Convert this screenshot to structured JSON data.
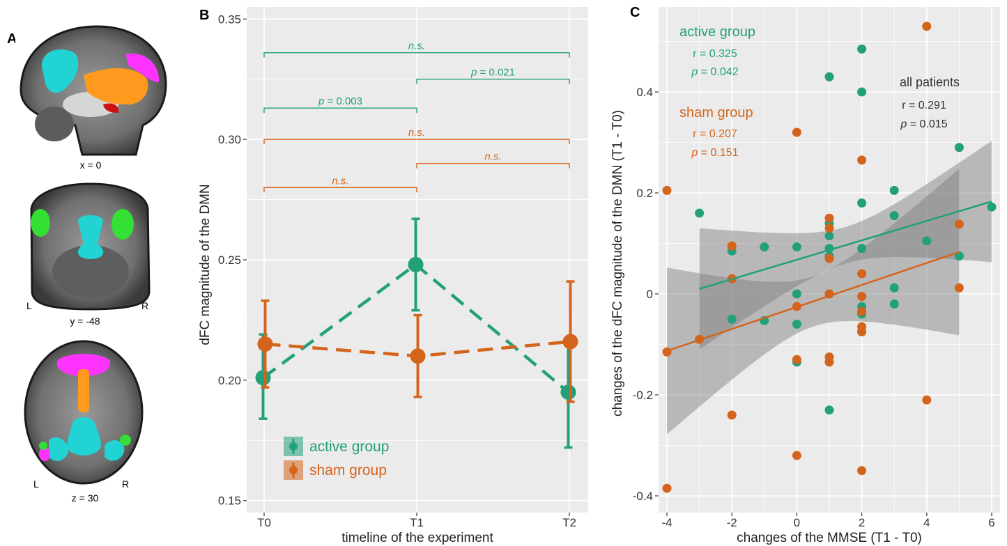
{
  "panels": {
    "A": {
      "letter": "A",
      "slices": [
        {
          "label": "x = 0"
        },
        {
          "label": "y = -48",
          "left": "L",
          "right": "R"
        },
        {
          "label": "z = 30",
          "left": "L",
          "right": "R"
        }
      ],
      "network_colors": [
        "#22d3d3",
        "#ff9a1f",
        "#ff33ff",
        "#33e033",
        "#cc1111"
      ]
    },
    "B": {
      "letter": "B"
    },
    "C": {
      "letter": "C"
    }
  },
  "colors": {
    "active": "#22a07a",
    "sham": "#d4641c",
    "panel_bg": "#ebebeb",
    "grid": "#ffffff",
    "ribbon": "#7a7a7a",
    "stats_all": "#333333"
  },
  "chart_data": [
    {
      "type": "line",
      "panel": "B",
      "xlabel": "timeline of the experiment",
      "ylabel": "dFC magnitude of the DMN",
      "categories": [
        "T0",
        "T1",
        "T2"
      ],
      "ylim": [
        0.145,
        0.355
      ],
      "yticks": [
        0.15,
        0.2,
        0.25,
        0.3,
        0.35
      ],
      "ytick_labels": [
        "0.15",
        "0.20",
        "0.25",
        "0.30",
        "0.35"
      ],
      "series": [
        {
          "name": "active group",
          "key": "active",
          "values": [
            0.201,
            0.248,
            0.195
          ],
          "lower": [
            0.184,
            0.229,
            0.172
          ],
          "upper": [
            0.219,
            0.267,
            0.217
          ]
        },
        {
          "name": "sham group",
          "key": "sham",
          "values": [
            0.215,
            0.21,
            0.216
          ],
          "lower": [
            0.197,
            0.193,
            0.191
          ],
          "upper": [
            0.233,
            0.227,
            0.241
          ]
        }
      ],
      "comparisons": [
        {
          "from": 0,
          "to": 2,
          "y": 0.336,
          "label": "n.s.",
          "group": "active"
        },
        {
          "from": 1,
          "to": 2,
          "y": 0.325,
          "label": "p = 0.021",
          "group": "active"
        },
        {
          "from": 0,
          "to": 1,
          "y": 0.313,
          "label": "p = 0.003",
          "group": "active"
        },
        {
          "from": 0,
          "to": 2,
          "y": 0.3,
          "label": "n.s.",
          "group": "sham"
        },
        {
          "from": 1,
          "to": 2,
          "y": 0.29,
          "label": "n.s.",
          "group": "sham"
        },
        {
          "from": 0,
          "to": 1,
          "y": 0.28,
          "label": "n.s.",
          "group": "sham"
        }
      ],
      "legend": {
        "position": "bottom-left",
        "entries": [
          "active group",
          "sham group"
        ]
      }
    },
    {
      "type": "scatter",
      "panel": "C",
      "xlabel": "changes of the MMSE (T1 - T0)",
      "ylabel": "changes of the dFC magnitude of the DMN (T1 - T0)",
      "xlim": [
        -4.5,
        6.3
      ],
      "ylim": [
        -0.42,
        0.53
      ],
      "xticks": [
        -4,
        -2,
        0,
        2,
        4,
        6
      ],
      "xtick_labels": [
        "-4",
        "-2",
        "0",
        "2",
        "4",
        "6"
      ],
      "yticks": [
        -0.4,
        -0.2,
        0,
        0.2,
        0.4
      ],
      "ytick_labels": [
        "-0.4",
        "-0.2",
        "0",
        "0.2",
        "0.4"
      ],
      "series": [
        {
          "name": "active group",
          "key": "active",
          "points": [
            [
              -3,
              0.16
            ],
            [
              -2,
              0.085
            ],
            [
              -2,
              0.03
            ],
            [
              -2,
              -0.05
            ],
            [
              -1,
              0.093
            ],
            [
              -1,
              -0.053
            ],
            [
              0,
              0.093
            ],
            [
              0,
              0.0
            ],
            [
              0,
              -0.06
            ],
            [
              0,
              -0.135
            ],
            [
              1,
              0.43
            ],
            [
              1,
              0.14
            ],
            [
              1,
              0.115
            ],
            [
              1,
              0.09
            ],
            [
              1,
              0.075
            ],
            [
              1,
              0.0
            ],
            [
              1,
              -0.23
            ],
            [
              2,
              0.485
            ],
            [
              2,
              0.4
            ],
            [
              2,
              0.18
            ],
            [
              2,
              0.09
            ],
            [
              2,
              -0.025
            ],
            [
              2,
              -0.04
            ],
            [
              2,
              -0.075
            ],
            [
              3,
              0.205
            ],
            [
              3,
              0.155
            ],
            [
              3,
              0.012
            ],
            [
              3,
              -0.02
            ],
            [
              4,
              0.105
            ],
            [
              5,
              0.29
            ],
            [
              5,
              0.075
            ],
            [
              6,
              0.172
            ]
          ],
          "fit": {
            "x": [
              -3,
              6
            ],
            "y": [
              0.01,
              0.183
            ]
          }
        },
        {
          "name": "sham group",
          "key": "sham",
          "points": [
            [
              -4,
              0.205
            ],
            [
              -4,
              -0.115
            ],
            [
              -4,
              -0.385
            ],
            [
              -3,
              -0.09
            ],
            [
              -2,
              0.095
            ],
            [
              -2,
              0.03
            ],
            [
              -2,
              -0.24
            ],
            [
              0,
              0.32
            ],
            [
              0,
              -0.025
            ],
            [
              0,
              -0.13
            ],
            [
              0,
              -0.32
            ],
            [
              1,
              0.15
            ],
            [
              1,
              0.13
            ],
            [
              1,
              0.07
            ],
            [
              1,
              0.0
            ],
            [
              1,
              -0.125
            ],
            [
              1,
              -0.135
            ],
            [
              2,
              0.265
            ],
            [
              2,
              0.04
            ],
            [
              2,
              -0.005
            ],
            [
              2,
              -0.035
            ],
            [
              2,
              -0.065
            ],
            [
              2,
              -0.075
            ],
            [
              2,
              -0.35
            ],
            [
              4,
              0.53
            ],
            [
              4,
              -0.21
            ],
            [
              5,
              0.138
            ],
            [
              5,
              0.012
            ]
          ],
          "fit": {
            "x": [
              -4,
              5
            ],
            "y": [
              -0.113,
              0.083
            ]
          }
        }
      ],
      "ribbons": [
        {
          "key": "active",
          "x": [
            -3,
            6
          ],
          "lower": [
            -0.12,
            0.045
          ],
          "upper": [
            0.12,
            0.322
          ]
        },
        {
          "key": "sham",
          "x": [
            -4,
            5
          ],
          "lower": [
            -0.27,
            -0.082
          ],
          "upper": [
            0.06,
            0.24
          ]
        }
      ],
      "annotations": {
        "active": {
          "title": "active group",
          "r": "r = 0.325",
          "p_prefix": "p",
          "p_value": " = 0.042"
        },
        "sham": {
          "title": "sham group",
          "r": "r = 0.207",
          "p_prefix": "p",
          "p_value": " = 0.151"
        },
        "all": {
          "title": "all patients",
          "r": "r = 0.291",
          "p_prefix": "p",
          "p_value": " = 0.015"
        }
      }
    }
  ]
}
